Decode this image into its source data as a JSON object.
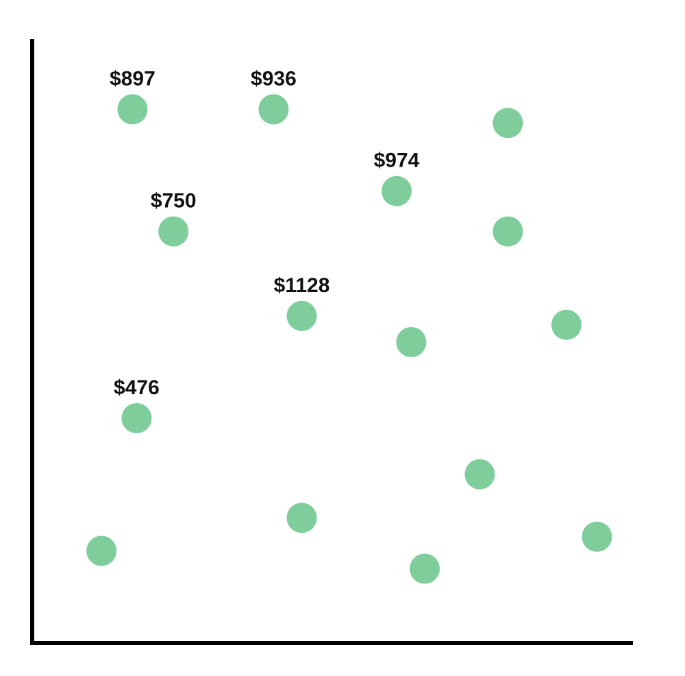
{
  "chart_data": {
    "type": "scatter",
    "title": "",
    "xlabel": "",
    "ylabel": "",
    "xlim": [
      0,
      100
    ],
    "ylim": [
      0,
      100
    ],
    "grid": false,
    "legend": "none",
    "marker_color": "#7fcd9a",
    "label_color": "#111111",
    "axis_color": "#000000",
    "points": [
      {
        "x": 15.6,
        "y": 94.2,
        "label": "$897"
      },
      {
        "x": 39.7,
        "y": 94.2,
        "label": "$936"
      },
      {
        "x": 79.7,
        "y": 91.6,
        "label": ""
      },
      {
        "x": 60.7,
        "y": 78.6,
        "label": "$974"
      },
      {
        "x": 22.6,
        "y": 70.9,
        "label": "$750"
      },
      {
        "x": 79.7,
        "y": 70.9,
        "label": ""
      },
      {
        "x": 44.5,
        "y": 54.8,
        "label": "$1128"
      },
      {
        "x": 89.7,
        "y": 53.1,
        "label": ""
      },
      {
        "x": 63.2,
        "y": 49.8,
        "label": ""
      },
      {
        "x": 16.3,
        "y": 35.3,
        "label": "$476"
      },
      {
        "x": 74.9,
        "y": 24.6,
        "label": ""
      },
      {
        "x": 44.5,
        "y": 16.3,
        "label": ""
      },
      {
        "x": 10.3,
        "y": 10.0,
        "label": ""
      },
      {
        "x": 94.9,
        "y": 12.7,
        "label": ""
      },
      {
        "x": 65.5,
        "y": 6.6,
        "label": ""
      }
    ]
  }
}
